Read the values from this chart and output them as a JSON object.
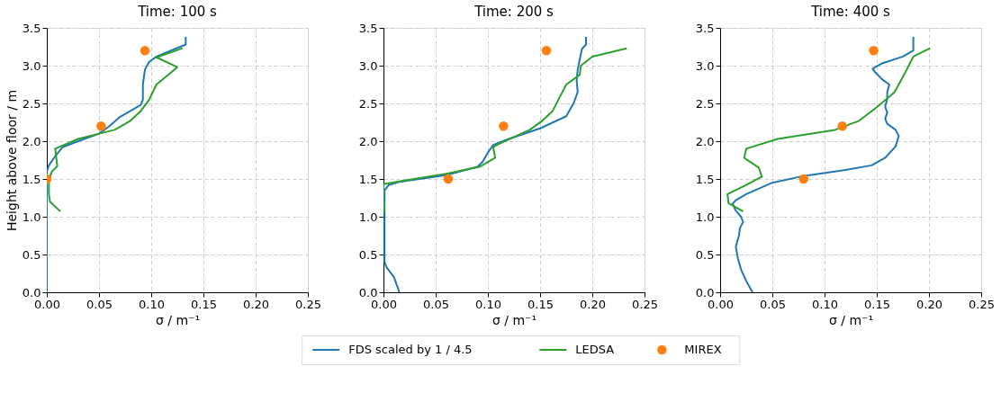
{
  "chart_data": [
    {
      "type": "line",
      "title": "Time: 100 s",
      "xlabel": "σ / m⁻¹",
      "ylabel": "Height above floor / m",
      "legend": "bottom",
      "xlim": [
        0,
        0.25
      ],
      "xticks": [
        {
          "value": 0,
          "label": "0.00"
        },
        {
          "value": 0.05,
          "label": "0.05"
        },
        {
          "value": 0.1,
          "label": "0.10"
        },
        {
          "value": 0.15,
          "label": "0.15"
        },
        {
          "value": 0.2,
          "label": "0.20"
        },
        {
          "value": 0.25,
          "label": "0.25"
        }
      ],
      "ylim": [
        0,
        3.5
      ],
      "yticks": [
        {
          "value": 0,
          "label": "0.0"
        },
        {
          "value": 0.5,
          "label": "0.5"
        },
        {
          "value": 1,
          "label": "1.0"
        },
        {
          "value": 1.5,
          "label": "1.5"
        },
        {
          "value": 2,
          "label": "2.0"
        },
        {
          "value": 2.5,
          "label": "2.5"
        },
        {
          "value": 3,
          "label": "3.0"
        },
        {
          "value": 3.5,
          "label": "3.5"
        }
      ],
      "grid": true,
      "series": [
        {
          "name": "FDS scaled by 1 / 4.5",
          "color": "#1f77b4",
          "type": "line",
          "x": [
            0,
            0,
            0.002,
            0.008,
            0.015,
            0.03,
            0.05,
            0.06,
            0.07,
            0.09,
            0.092,
            0.092,
            0.094,
            0.098,
            0.105,
            0.133,
            0.133
          ],
          "values": [
            0,
            1.6,
            1.68,
            1.8,
            1.92,
            2.0,
            2.1,
            2.2,
            2.32,
            2.48,
            2.55,
            2.75,
            2.95,
            3.05,
            3.12,
            3.28,
            3.38
          ]
        },
        {
          "name": "LEDSA",
          "color": "#2ca02c",
          "type": "line",
          "x": [
            0.013,
            0.003,
            0.002,
            0.002,
            0.005,
            0.01,
            0.008,
            0.03,
            0.05,
            0.065,
            0.08,
            0.09,
            0.098,
            0.105,
            0.125,
            0.105,
            0.13
          ],
          "values": [
            1.07,
            1.2,
            1.3,
            1.5,
            1.6,
            1.67,
            1.9,
            2.03,
            2.1,
            2.15,
            2.27,
            2.4,
            2.55,
            2.75,
            2.98,
            3.11,
            3.23
          ]
        },
        {
          "name": "MIREX",
          "color": "#ff7f0e",
          "type": "scatter",
          "x": [
            0,
            0.052,
            0.094
          ],
          "values": [
            1.5,
            2.2,
            3.2
          ]
        }
      ]
    },
    {
      "type": "line",
      "title": "Time: 200 s",
      "xlabel": "σ / m⁻¹",
      "xlim": [
        0,
        0.25
      ],
      "xticks": [
        {
          "value": 0,
          "label": "0.00"
        },
        {
          "value": 0.05,
          "label": "0.05"
        },
        {
          "value": 0.1,
          "label": "0.10"
        },
        {
          "value": 0.15,
          "label": "0.15"
        },
        {
          "value": 0.2,
          "label": "0.20"
        },
        {
          "value": 0.25,
          "label": "0.25"
        }
      ],
      "ylim": [
        0,
        3.5
      ],
      "yticks": [
        {
          "value": 0,
          "label": "0.0"
        },
        {
          "value": 0.5,
          "label": "0.5"
        },
        {
          "value": 1,
          "label": "1.0"
        },
        {
          "value": 1.5,
          "label": "1.5"
        },
        {
          "value": 2,
          "label": "2.0"
        },
        {
          "value": 2.5,
          "label": "2.5"
        },
        {
          "value": 3,
          "label": "3.0"
        },
        {
          "value": 3.5,
          "label": "3.5"
        }
      ],
      "grid": true,
      "legend": "bottom",
      "series": [
        {
          "name": "FDS scaled by 1 / 4.5",
          "color": "#1f77b4",
          "type": "line",
          "x": [
            0.015,
            0.014,
            0.01,
            0.003,
            0.001,
            0.001,
            0.001,
            0.005,
            0.015,
            0.06,
            0.09,
            0.095,
            0.1,
            0.105,
            0.12,
            0.15,
            0.175,
            0.182,
            0.186,
            0.185,
            0.186,
            0.19,
            0.194,
            0.194
          ],
          "values": [
            0,
            0.05,
            0.2,
            0.33,
            0.4,
            1.0,
            1.35,
            1.42,
            1.46,
            1.55,
            1.66,
            1.73,
            1.85,
            1.95,
            2.03,
            2.17,
            2.33,
            2.5,
            2.65,
            2.8,
            2.95,
            3.22,
            3.28,
            3.38
          ]
        },
        {
          "name": "LEDSA",
          "color": "#2ca02c",
          "type": "line",
          "x": [
            0.001,
            0,
            0,
            0.02,
            0.06,
            0.092,
            0.107,
            0.105,
            0.11,
            0.14,
            0.152,
            0.162,
            0.175,
            0.188,
            0.189,
            0.2,
            0.233
          ],
          "values": [
            1.07,
            1.3,
            1.43,
            1.48,
            1.57,
            1.66,
            1.78,
            1.92,
            1.96,
            2.15,
            2.27,
            2.4,
            2.75,
            2.88,
            3.0,
            3.12,
            3.23
          ]
        },
        {
          "name": "MIREX",
          "color": "#ff7f0e",
          "type": "scatter",
          "x": [
            0.062,
            0.115,
            0.156
          ],
          "values": [
            1.5,
            2.2,
            3.2
          ]
        }
      ]
    },
    {
      "type": "line",
      "title": "Time: 400 s",
      "xlabel": "σ / m⁻¹",
      "legend": "bottom",
      "xlim": [
        0,
        0.25
      ],
      "xticks": [
        {
          "value": 0,
          "label": "0.00"
        },
        {
          "value": 0.05,
          "label": "0.05"
        },
        {
          "value": 0.1,
          "label": "0.10"
        },
        {
          "value": 0.15,
          "label": "0.15"
        },
        {
          "value": 0.2,
          "label": "0.20"
        },
        {
          "value": 0.25,
          "label": "0.25"
        }
      ],
      "ylim": [
        0,
        3.5
      ],
      "yticks": [
        {
          "value": 0,
          "label": "0.0"
        },
        {
          "value": 0.5,
          "label": "0.5"
        },
        {
          "value": 1,
          "label": "1.0"
        },
        {
          "value": 1.5,
          "label": "1.5"
        },
        {
          "value": 2,
          "label": "2.0"
        },
        {
          "value": 2.5,
          "label": "2.5"
        },
        {
          "value": 3,
          "label": "3.0"
        },
        {
          "value": 3.5,
          "label": "3.5"
        }
      ],
      "grid": true,
      "series": [
        {
          "name": "FDS scaled by 1 / 4.5",
          "color": "#1f77b4",
          "type": "line",
          "x": [
            0.031,
            0.025,
            0.02,
            0.017,
            0.015,
            0.018,
            0.019,
            0.022,
            0.02,
            0.015,
            0.012,
            0.015,
            0.025,
            0.05,
            0.08,
            0.12,
            0.145,
            0.158,
            0.168,
            0.171,
            0.168,
            0.16,
            0.158,
            0.16,
            0.158,
            0.16,
            0.16,
            0.162,
            0.155,
            0.148,
            0.146,
            0.155,
            0.175,
            0.185,
            0.185
          ],
          "values": [
            0,
            0.15,
            0.3,
            0.45,
            0.6,
            0.75,
            0.85,
            0.93,
            1.0,
            1.08,
            1.17,
            1.22,
            1.3,
            1.45,
            1.54,
            1.62,
            1.68,
            1.78,
            1.93,
            2.07,
            2.15,
            2.23,
            2.3,
            2.38,
            2.46,
            2.56,
            2.65,
            2.75,
            2.82,
            2.92,
            2.96,
            3.03,
            3.12,
            3.2,
            3.38
          ]
        },
        {
          "name": "LEDSA",
          "color": "#2ca02c",
          "type": "line",
          "x": [
            0.022,
            0.008,
            0.007,
            0.025,
            0.04,
            0.037,
            0.025,
            0.023,
            0.025,
            0.055,
            0.11,
            0.133,
            0.15,
            0.167,
            0.175,
            0.185,
            0.201
          ],
          "values": [
            1.07,
            1.18,
            1.3,
            1.42,
            1.53,
            1.65,
            1.76,
            1.78,
            1.9,
            2.03,
            2.15,
            2.27,
            2.45,
            2.65,
            2.85,
            3.12,
            3.23
          ]
        },
        {
          "name": "MIREX",
          "color": "#ff7f0e",
          "type": "scatter",
          "x": [
            0.08,
            0.117,
            0.147
          ],
          "values": [
            1.5,
            2.2,
            3.2
          ]
        }
      ]
    }
  ]
}
